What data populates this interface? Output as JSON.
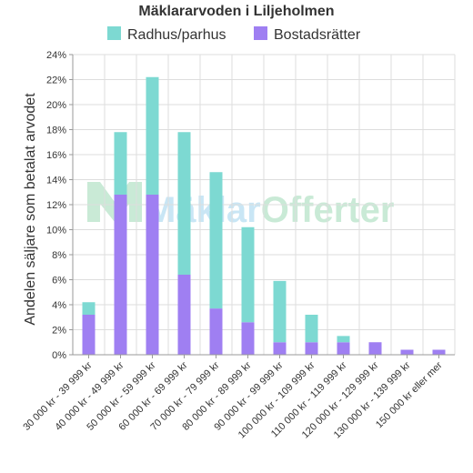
{
  "chart_data": {
    "type": "bar",
    "stacked": true,
    "title": "Mäklararvoden i Liljeholmen",
    "ylabel": "Andelen säljare som betalat arvodet",
    "xlabel": "",
    "ylim": [
      0,
      24
    ],
    "yticks": [
      "0%",
      "2%",
      "4%",
      "6%",
      "8%",
      "10%",
      "12%",
      "14%",
      "16%",
      "18%",
      "20%",
      "22%",
      "24%"
    ],
    "grid": true,
    "legend_position": "top",
    "categories": [
      "30 000 kr - 39 999 kr",
      "40 000 kr - 49 999 kr",
      "50 000 kr - 59 999 kr",
      "60 000 kr - 69 999 kr",
      "70 000 kr - 79 999 kr",
      "80 000 kr - 89 999 kr",
      "90 000 kr - 99 999 kr",
      "100 000 kr - 109 999 kr",
      "110 000 kr - 119 999 kr",
      "120 000 kr - 129 999 kr",
      "130 000 kr - 139 999 kr",
      "150 000 kr eller mer"
    ],
    "series": [
      {
        "name": "Bostadsrätter",
        "color": "#9f7ff2",
        "values": [
          3.2,
          12.8,
          12.8,
          6.4,
          3.7,
          2.6,
          1.0,
          1.0,
          1.0,
          1.0,
          0.4,
          0.4
        ]
      },
      {
        "name": "Radhus/parhus",
        "color": "#7dd9d2",
        "values": [
          1.0,
          5.0,
          9.4,
          11.4,
          10.9,
          7.6,
          4.9,
          2.2,
          0.5,
          0.0,
          0.0,
          0.0
        ]
      }
    ],
    "legend_order": [
      "Radhus/parhus",
      "Bostadsrätter"
    ]
  },
  "watermark": {
    "text_main": "Mäklar",
    "text_accent": "Offerter",
    "color_main": "#c9e6f5",
    "color_accent": "#c9ead6"
  }
}
